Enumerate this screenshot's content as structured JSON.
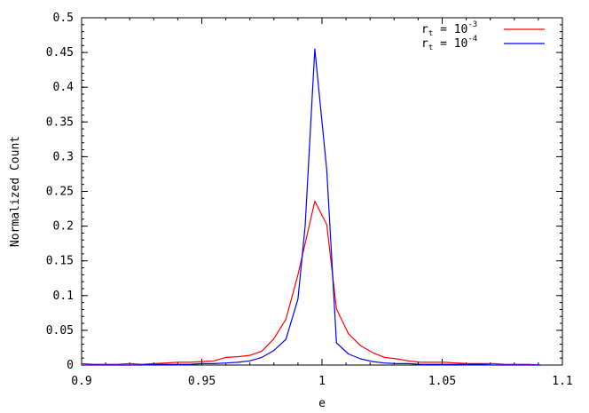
{
  "chart_data": {
    "type": "line",
    "xlabel": "e",
    "ylabel": "Normalized Count",
    "xlim": [
      0.9,
      1.1
    ],
    "ylim": [
      0,
      0.5
    ],
    "xticks": [
      "0.9",
      "0.95",
      "1",
      "1.05",
      "1.1"
    ],
    "yticks": [
      "0",
      "0.05",
      "0.1",
      "0.15",
      "0.2",
      "0.25",
      "0.3",
      "0.35",
      "0.4",
      "0.45",
      "0.5"
    ],
    "grid": false,
    "legend_position": "top-right",
    "series": [
      {
        "name_main": "r",
        "name_sub": "t",
        "name_rest": " = 10",
        "name_exp": "-3",
        "color": "#ff0000",
        "x": [
          0.9,
          0.905,
          0.91,
          0.915,
          0.92,
          0.925,
          0.93,
          0.935,
          0.94,
          0.945,
          0.95,
          0.955,
          0.96,
          0.965,
          0.97,
          0.975,
          0.98,
          0.985,
          0.99,
          0.995,
          0.997,
          1.002,
          1.006,
          1.011,
          1.016,
          1.021,
          1.026,
          1.031,
          1.036,
          1.041,
          1.046,
          1.051,
          1.056,
          1.061,
          1.066,
          1.071,
          1.076,
          1.081,
          1.086,
          1.091
        ],
        "y": [
          0.002,
          0.001,
          0.001,
          0.001,
          0.002,
          0.001,
          0.002,
          0.003,
          0.004,
          0.004,
          0.005,
          0.006,
          0.011,
          0.012,
          0.014,
          0.02,
          0.038,
          0.066,
          0.13,
          0.205,
          0.236,
          0.202,
          0.081,
          0.045,
          0.028,
          0.018,
          0.011,
          0.009,
          0.006,
          0.004,
          0.004,
          0.004,
          0.003,
          0.002,
          0.002,
          0.002,
          0.001,
          0.001,
          0.001,
          0.0
        ]
      },
      {
        "name_main": "r",
        "name_sub": "t",
        "name_rest": " = 10",
        "name_exp": "-4",
        "color": "#0000ff",
        "x": [
          0.9,
          0.905,
          0.91,
          0.915,
          0.92,
          0.925,
          0.93,
          0.935,
          0.94,
          0.945,
          0.95,
          0.955,
          0.96,
          0.965,
          0.97,
          0.975,
          0.98,
          0.985,
          0.99,
          0.993,
          0.997,
          1.002,
          1.006,
          1.011,
          1.016,
          1.021,
          1.026,
          1.031,
          1.036,
          1.041,
          1.046,
          1.051,
          1.056,
          1.061,
          1.066,
          1.071,
          1.076,
          1.081,
          1.086,
          1.091
        ],
        "y": [
          0.0,
          0.0,
          0.0,
          0.0,
          0.0,
          0.0,
          0.001,
          0.001,
          0.001,
          0.001,
          0.002,
          0.002,
          0.003,
          0.004,
          0.006,
          0.011,
          0.021,
          0.037,
          0.095,
          0.2,
          0.455,
          0.28,
          0.032,
          0.016,
          0.009,
          0.005,
          0.003,
          0.002,
          0.002,
          0.001,
          0.001,
          0.001,
          0.001,
          0.001,
          0.001,
          0.0,
          0.0,
          0.0,
          0.0,
          0.0
        ]
      }
    ]
  }
}
